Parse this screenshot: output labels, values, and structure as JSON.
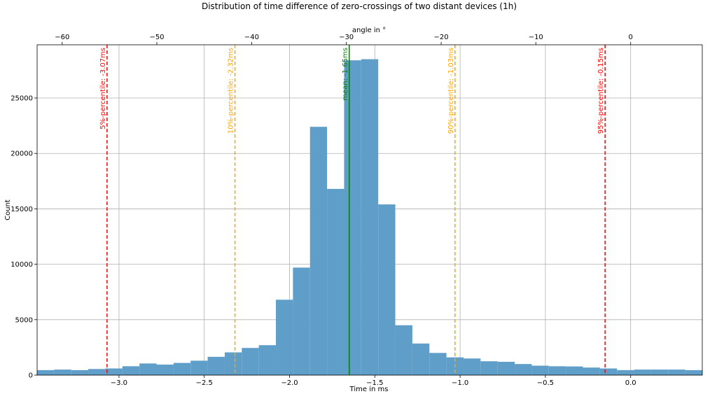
{
  "chart_data": {
    "type": "bar",
    "title": "Distribution of time difference of zero-crossings of two distant devices (1h)",
    "xlabel": "Time in ms",
    "ylabel": "Count",
    "top_xlabel": "angle in °",
    "xlim": [
      -3.48,
      0.42
    ],
    "ylim": [
      0,
      29800
    ],
    "grid": true,
    "bin_width": 0.1,
    "bin_starts": [
      -3.48,
      -3.38,
      -3.28,
      -3.18,
      -3.08,
      -2.98,
      -2.88,
      -2.78,
      -2.68,
      -2.58,
      -2.48,
      -2.38,
      -2.28,
      -2.18,
      -2.08,
      -1.98,
      -1.88,
      -1.78,
      -1.68,
      -1.58,
      -1.48,
      -1.38,
      -1.28,
      -1.18,
      -1.08,
      -0.98,
      -0.88,
      -0.78,
      -0.68,
      -0.58,
      -0.48,
      -0.38,
      -0.28,
      -0.18,
      -0.08,
      0.02,
      0.12,
      0.22,
      0.32
    ],
    "counts": [
      450,
      500,
      450,
      550,
      600,
      800,
      1050,
      950,
      1100,
      1300,
      1650,
      2050,
      2450,
      2700,
      6800,
      9700,
      22400,
      16800,
      28400,
      28500,
      15400,
      4500,
      2850,
      2000,
      1600,
      1500,
      1250,
      1200,
      1000,
      850,
      800,
      780,
      680,
      600,
      450,
      500,
      500,
      500,
      450
    ],
    "bar_color": "#5f9ec9",
    "x_ticks": [
      -3.0,
      -2.5,
      -2.0,
      -1.5,
      -1.0,
      -0.5,
      0.0
    ],
    "x_tick_labels": [
      "−3.0",
      "−2.5",
      "−2.0",
      "−1.5",
      "−1.0",
      "−0.5",
      "0.0"
    ],
    "y_ticks": [
      0,
      5000,
      10000,
      15000,
      20000,
      25000
    ],
    "y_tick_labels": [
      "0",
      "5000",
      "10000",
      "15000",
      "20000",
      "25000"
    ],
    "top_ticks_ms": [
      -3.333,
      -2.778,
      -2.222,
      -1.667,
      -1.111,
      -0.556,
      0.0
    ],
    "top_tick_labels": [
      "−60",
      "−50",
      "−40",
      "−30",
      "−20",
      "−10",
      "0"
    ],
    "vlines": [
      {
        "x": -3.07,
        "label": "5%-percentile: -3.07ms",
        "color": "#ff0000",
        "style": "dashed"
      },
      {
        "x": -2.32,
        "label": "10%-percentile: -2.32ms",
        "color": "#ffa500",
        "style": "dashed"
      },
      {
        "x": -1.65,
        "label": "mean: -1.65ms",
        "color": "#008000",
        "style": "solid"
      },
      {
        "x": -1.03,
        "label": "90%-percentile: -1.03ms",
        "color": "#ffa500",
        "style": "dashed"
      },
      {
        "x": -0.15,
        "label": "95%-percentile: -0.15ms",
        "color": "#ff0000",
        "style": "dashed"
      }
    ]
  }
}
